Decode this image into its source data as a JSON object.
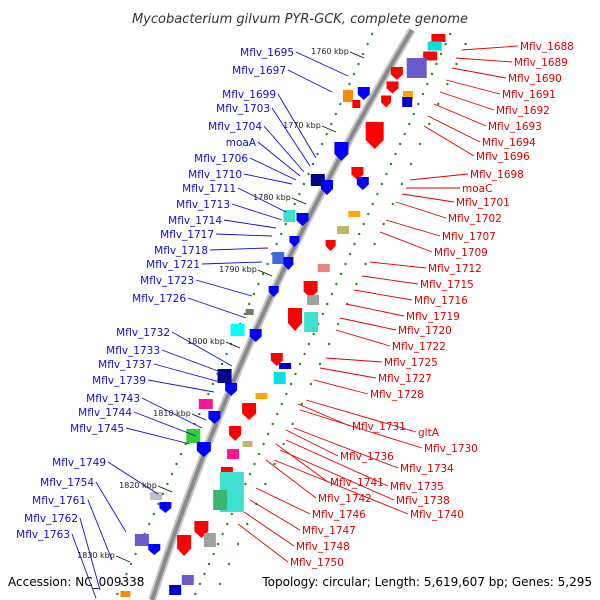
{
  "title": "Mycobacterium gilvum PYR-GCK, complete genome",
  "footer": {
    "accession": "Accession: NC_009338",
    "topology": "Topology: circular; Length: 5,619,607 bp; Genes: 5,295"
  },
  "colors": {
    "left_labels": "#1010cc",
    "right_labels": "#dd0000",
    "kbp_dots": "#228b22",
    "backbone": "#8a8a8a"
  },
  "kbp_marks": [
    "1760 kbp",
    "1770 kbp",
    "1780 kbp",
    "1790 kbp",
    "1800 kbp",
    "1810 kbp",
    "1820 kbp",
    "1830 kbp"
  ],
  "left_labels": [
    "Mflv_1695",
    "Mflv_1697",
    "Mflv_1699",
    "Mflv_1703",
    "Mflv_1704",
    "moaA",
    "Mflv_1706",
    "Mflv_1710",
    "Mflv_1711",
    "Mflv_1713",
    "Mflv_1714",
    "Mflv_1717",
    "Mflv_1718",
    "Mflv_1721",
    "Mflv_1723",
    "Mflv_1726",
    "Mflv_1732",
    "Mflv_1733",
    "Mflv_1737",
    "Mflv_1739",
    "Mflv_1743",
    "Mflv_1744",
    "Mflv_1745",
    "Mflv_1749",
    "Mflv_1754",
    "Mflv_1761",
    "Mflv_1762",
    "Mflv_1763"
  ],
  "right_labels": [
    "Mflv_1688",
    "Mflv_1689",
    "Mflv_1690",
    "Mflv_1691",
    "Mflv_1692",
    "Mflv_1693",
    "Mflv_1694",
    "Mflv_1696",
    "Mflv_1698",
    "moaC",
    "Mflv_1701",
    "Mflv_1702",
    "Mflv_1707",
    "Mflv_1709",
    "Mflv_1712",
    "Mflv_1715",
    "Mflv_1716",
    "Mflv_1719",
    "Mflv_1720",
    "Mflv_1722",
    "Mflv_1725",
    "Mflv_1727",
    "Mflv_1728",
    "Mflv_1731",
    "gltA",
    "Mflv_1730",
    "Mflv_1736",
    "Mflv_1734",
    "Mflv_1741",
    "Mflv_1735",
    "Mflv_1742",
    "Mflv_1738",
    "Mflv_1740",
    "Mflv_1746",
    "Mflv_1747",
    "Mflv_1748",
    "Mflv_1750"
  ]
}
